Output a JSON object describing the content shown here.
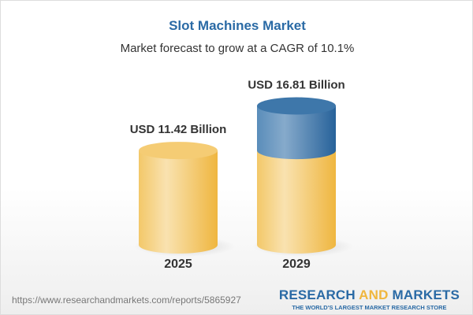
{
  "title": "Slot Machines Market",
  "subtitle": "Market forecast to grow at a CAGR of 10.1%",
  "chart_data": {
    "type": "bar",
    "style": "3d-cylinder",
    "categories": [
      "2025",
      "2029"
    ],
    "values": [
      11.42,
      16.81
    ],
    "data_labels": [
      "USD 11.42 Billion",
      "USD 16.81 Billion"
    ],
    "unit": "USD Billion",
    "colors": {
      "base": "#f2c15a",
      "growth": "#4a80b0"
    }
  },
  "footer": {
    "url": "https://www.researchandmarkets.com/reports/5865927",
    "logo_part1": "RESEARCH ",
    "logo_part2": "AND",
    "logo_part3": " MARKETS",
    "tagline": "THE WORLD'S LARGEST MARKET RESEARCH STORE"
  }
}
